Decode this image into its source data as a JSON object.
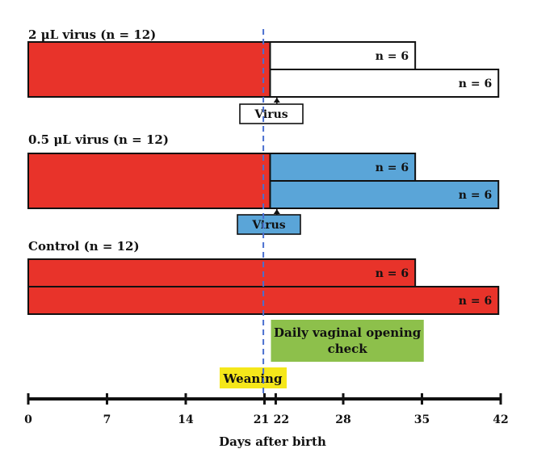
{
  "groups": [
    {
      "id": "group-2ul-virus",
      "label": "2 μL virus (n = 12)",
      "pre_start_day": 0,
      "split_day": 21.5,
      "end_days": [
        34.4,
        41.8
      ],
      "subgroup_labels": [
        "n = 6",
        "n = 6"
      ],
      "injection_day": 22.1,
      "injection_label": "Virus",
      "pre_color": "#e8332a",
      "post_color": "#ffffff"
    },
    {
      "id": "group-05ul-virus",
      "label": "0.5 μL virus (n = 12)",
      "pre_start_day": 0,
      "split_day": 21.5,
      "end_days": [
        34.4,
        41.8
      ],
      "subgroup_labels": [
        "n = 6",
        "n = 6"
      ],
      "injection_day": 22.1,
      "injection_label": "Virus",
      "pre_color": "#e8332a",
      "post_color": "#5aa5d8"
    },
    {
      "id": "group-control",
      "label": "Control (n = 12)",
      "pre_start_day": 0,
      "split_day": null,
      "end_days": [
        34.4,
        41.8
      ],
      "subgroup_labels": [
        "n = 6",
        "n = 6"
      ],
      "injection_day": null,
      "injection_label": "",
      "pre_color": "#e8332a",
      "post_color": "#e8332a"
    }
  ],
  "weaning": {
    "day": 20.9,
    "label": "Weaning",
    "color": "#f5e71a"
  },
  "vaginal_check": {
    "start_day": 21,
    "end_day": 34.3,
    "lines": [
      "Daily vaginal opening",
      "check"
    ],
    "color": "#8dc04b"
  },
  "axis": {
    "min": 0,
    "max": 42,
    "ticks": [
      0,
      7,
      14,
      21,
      22,
      28,
      35,
      42
    ],
    "tick_labels": [
      "0",
      "7",
      "14",
      "21",
      "22",
      "28",
      "35",
      "42"
    ],
    "label": "Days after birth"
  },
  "colors": {
    "outline": "#111111",
    "dashed_line": "#4a6fd0"
  }
}
